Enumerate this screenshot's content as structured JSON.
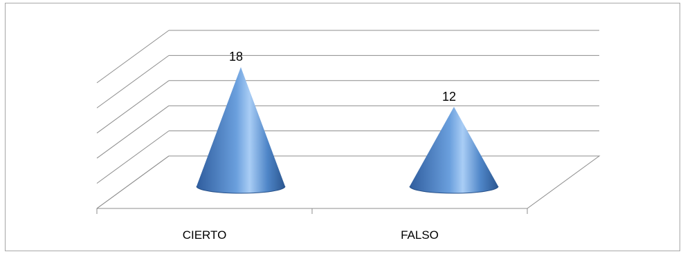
{
  "chart_data": {
    "type": "bar",
    "style": "3d-cone",
    "categories": [
      "CIERTO",
      "FALSO"
    ],
    "values": [
      18,
      12
    ],
    "ylim": [
      0,
      20
    ],
    "gridlines": [
      0,
      4,
      8,
      12,
      16,
      20
    ],
    "grid": true,
    "legend": "none",
    "colors": {
      "cone_dark": "#2f5d9e",
      "cone_mid": "#4f86c8",
      "cone_light": "#a9cdf5",
      "grid": "#8c8c8c",
      "frame": "#a6a6a6"
    }
  }
}
